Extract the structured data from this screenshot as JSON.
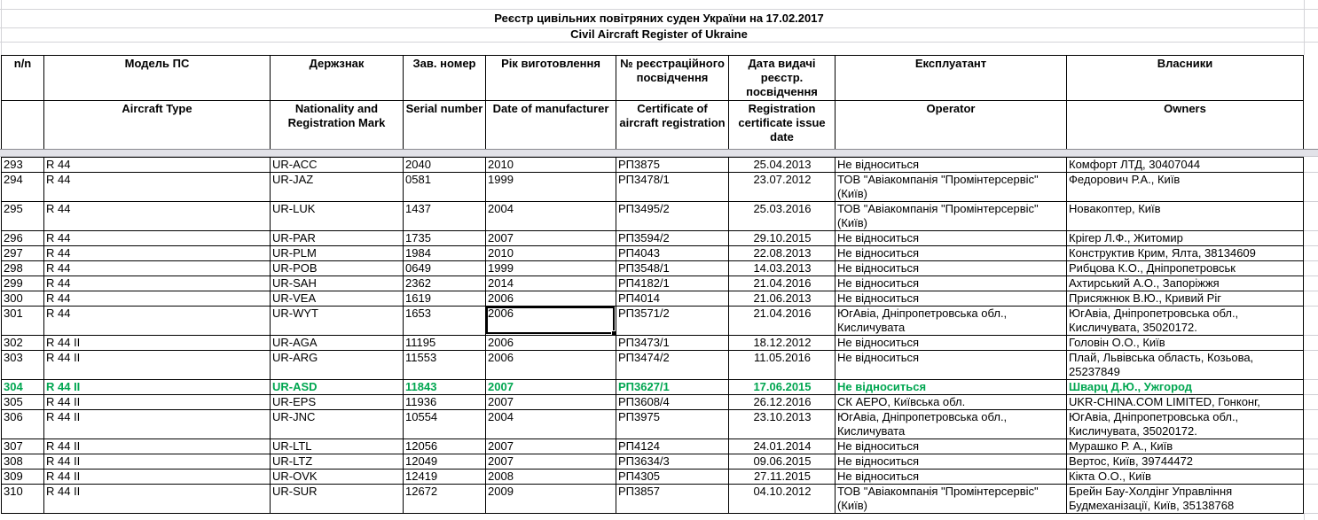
{
  "title": {
    "uk": "Реєстр цивільних повітряних суден України на 17.02.2017",
    "en": "Civil Aircraft Register of Ukraine"
  },
  "columns": [
    {
      "id": "num",
      "uk": "n/n",
      "en": ""
    },
    {
      "id": "model",
      "uk": "Модель ПС",
      "en": "Aircraft Type"
    },
    {
      "id": "mark",
      "uk": "Держзнак",
      "en": "Nationality and Registration Mark"
    },
    {
      "id": "serial",
      "uk": "Зав. номер",
      "en": "Serial number"
    },
    {
      "id": "year",
      "uk": "Рік виготовлення",
      "en": "Date of manufacturer"
    },
    {
      "id": "cert",
      "uk": "№ реєстраційного посвідчення",
      "en": "Certificate of aircraft registration"
    },
    {
      "id": "date",
      "uk": "Дата видачі реєстр. посвідчення",
      "en": "Registration certificate issue date"
    },
    {
      "id": "operator",
      "uk": "Експлуатант",
      "en": "Operator"
    },
    {
      "id": "owners",
      "uk": "Власники",
      "en": "Owners"
    }
  ],
  "rows": [
    {
      "num": "293",
      "model": "R 44",
      "mark": "UR-ACC",
      "serial": "2040",
      "year": "2010",
      "cert": "РП3875",
      "date": "25.04.2013",
      "operator": "Не відноситься",
      "owners": "Комфорт ЛТД, 30407044"
    },
    {
      "num": "294",
      "model": "R 44",
      "mark": "UR-JAZ",
      "serial": "0581",
      "year": "1999",
      "cert": "РП3478/1",
      "date": "23.07.2012",
      "operator": "ТОВ \"Авіакомпанія \"Промінтерсервіс\" (Київ)",
      "owners": "Федорович Р.А., Київ"
    },
    {
      "num": "295",
      "model": "R 44",
      "mark": "UR-LUK",
      "serial": "1437",
      "year": "2004",
      "cert": "РП3495/2",
      "date": "25.03.2016",
      "operator": "ТОВ \"Авіакомпанія \"Промінтерсервіс\" (Київ)",
      "owners": "Новакоптер, Київ"
    },
    {
      "num": "296",
      "model": "R 44",
      "mark": "UR-PAR",
      "serial": "1735",
      "year": "2007",
      "cert": "РП3594/2",
      "date": "29.10.2015",
      "operator": "Не відноситься",
      "owners": "Крігер Л.Ф., Житомир"
    },
    {
      "num": "297",
      "model": "R 44",
      "mark": "UR-PLM",
      "serial": "1984",
      "year": "2010",
      "cert": "РП4043",
      "date": "22.08.2013",
      "operator": "Не відноситься",
      "owners": "Конструктив Крим, Ялта, 38134609"
    },
    {
      "num": "298",
      "model": "R 44",
      "mark": "UR-POB",
      "serial": "0649",
      "year": "1999",
      "cert": "РП3548/1",
      "date": "14.03.2013",
      "operator": "Не відноситься",
      "owners": "Рибцова К.О., Дніпропетровськ"
    },
    {
      "num": "299",
      "model": "R 44",
      "mark": "UR-SAH",
      "serial": "2362",
      "year": "2014",
      "cert": "РП4182/1",
      "date": "21.04.2016",
      "operator": "Не відноситься",
      "owners": "Ахтирський А.О., Запоріжжя"
    },
    {
      "num": "300",
      "model": "R 44",
      "mark": "UR-VEA",
      "serial": "1619",
      "year": "2006",
      "cert": "РП4014",
      "date": "21.06.2013",
      "operator": "Не відноситься",
      "owners": "Присяжнюк В.Ю., Кривий Ріг"
    },
    {
      "num": "301",
      "model": "R 44",
      "mark": "UR-WYT",
      "serial": "1653",
      "year": "2006",
      "cert": "РП3571/2",
      "date": "21.04.2016",
      "operator": "ЮгАвіа, Дніпропетровська обл., Кисличувата",
      "owners": "ЮгАвіа, Дніпропетровська обл., Кисличувата, 35020172."
    },
    {
      "num": "302",
      "model": "R 44 II",
      "mark": "UR-AGA",
      "serial": "11195",
      "year": "2006",
      "cert": "РП3473/1",
      "date": "18.12.2012",
      "operator": "Не відноситься",
      "owners": "Головін О.О., Київ"
    },
    {
      "num": "303",
      "model": "R 44 II",
      "mark": "UR-ARG",
      "serial": "11553",
      "year": "2006",
      "cert": "РП3474/2",
      "date": "11.05.2016",
      "operator": "Не відноситься",
      "owners": "Плай, Львівська область, Козьова, 25237849"
    },
    {
      "num": "304",
      "model": "R 44 II",
      "mark": "UR-ASD",
      "serial": "11843",
      "year": "2007",
      "cert": "РП3627/1",
      "date": "17.06.2015",
      "operator": "Не відноситься",
      "owners": "Шварц Д.Ю., Ужгород"
    },
    {
      "num": "305",
      "model": "R 44 II",
      "mark": "UR-EPS",
      "serial": "11936",
      "year": "2007",
      "cert": "РП3608/4",
      "date": "26.12.2016",
      "operator": "СК АЕРО, Київська обл.",
      "owners": "UKR-CHINA.COM LIMITED, Гонконг,"
    },
    {
      "num": "306",
      "model": "R 44 II",
      "mark": "UR-JNC",
      "serial": "10554",
      "year": "2004",
      "cert": "РП3975",
      "date": "23.10.2013",
      "operator": "ЮгАвіа, Дніпропетровська обл., Кисличувата",
      "owners": "ЮгАвіа, Дніпропетровська обл., Кисличувата, 35020172."
    },
    {
      "num": "307",
      "model": "R 44 II",
      "mark": "UR-LTL",
      "serial": "12056",
      "year": "2007",
      "cert": "РП4124",
      "date": "24.01.2014",
      "operator": "Не відноситься",
      "owners": "Мурашко Р. А., Київ"
    },
    {
      "num": "308",
      "model": "R 44 II",
      "mark": "UR-LTZ",
      "serial": "12049",
      "year": "2007",
      "cert": "РП3634/3",
      "date": "09.06.2015",
      "operator": "Не відноситься",
      "owners": "Вертос, Київ, 39744472"
    },
    {
      "num": "309",
      "model": "R 44 II",
      "mark": "UR-OVK",
      "serial": "12419",
      "year": "2008",
      "cert": "РП4305",
      "date": "27.11.2015",
      "operator": "Не відноситься",
      "owners": "Кікта О.О., Київ"
    },
    {
      "num": "310",
      "model": "R 44 II",
      "mark": "UR-SUR",
      "serial": "12672",
      "year": "2009",
      "cert": "РП3857",
      "date": "04.10.2012",
      "operator": "ТОВ \"Авіакомпанія \"Промінтерсервіс\" (Київ)",
      "owners": "Брейн Бау-Холдінг Управління Будмеханізації, Київ, 35138768"
    }
  ],
  "highlight": {
    "row_num": "304",
    "color": "#00a650"
  },
  "selection": {
    "row": "301",
    "column": "year"
  }
}
